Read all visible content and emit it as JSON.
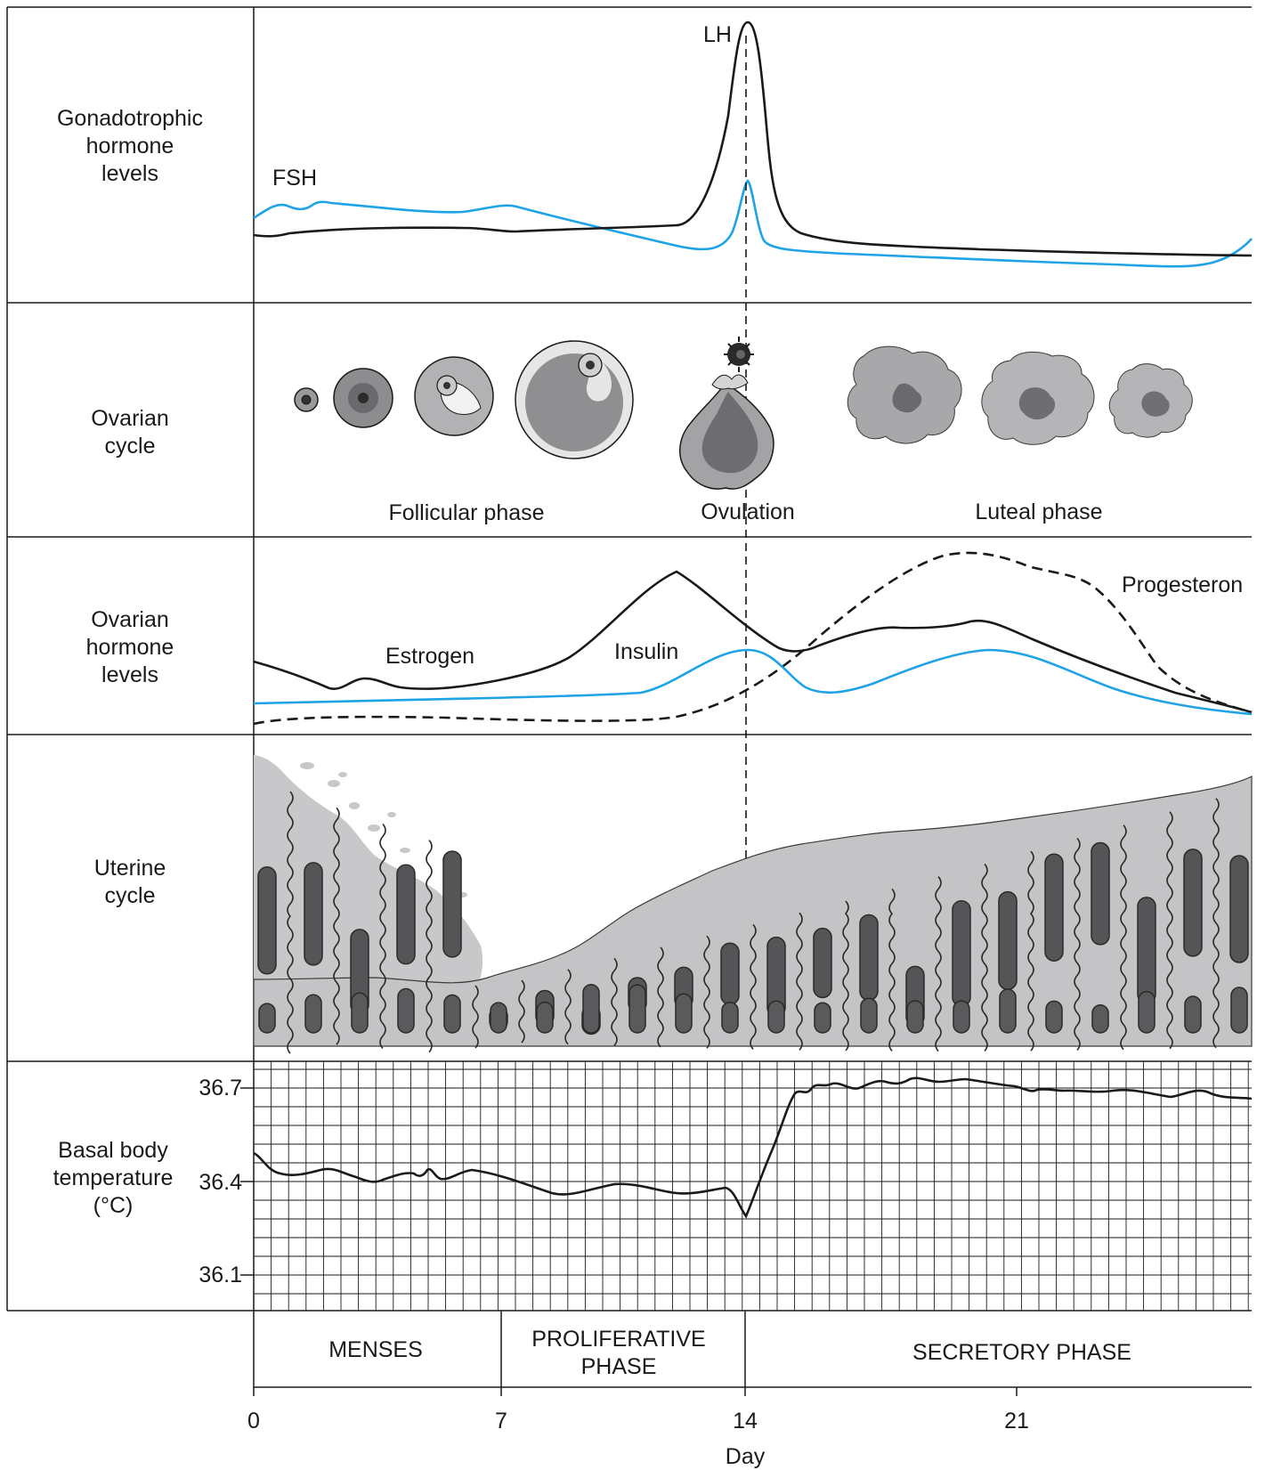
{
  "rows": {
    "gonadotrophic": "Gonadotrophic hormone levels",
    "ovarian_cycle": "Ovarian cycle",
    "ovarian_hormones": "Ovarian hormone levels",
    "uterine": "Uterine cycle",
    "bbt": "Basal body temperature (°C)"
  },
  "curves": {
    "lh": "LH",
    "fsh": "FSH",
    "estrogen": "Estrogen",
    "insulin": "Insulin",
    "progesterone": "Progesteron"
  },
  "ovarian_phases": {
    "follicular": "Follicular phase",
    "ovulation": "Ovulation",
    "luteal": "Luteal phase"
  },
  "bbt_ticks": [
    "36.7",
    "36.4",
    "36.1"
  ],
  "uterine_phases": {
    "menses": "MENSES",
    "proliferative_1": "PROLIFERATIVE",
    "proliferative_2": "PHASE",
    "secretory": "SECRETORY PHASE"
  },
  "day_ticks": [
    "0",
    "7",
    "14",
    "21"
  ],
  "x_axis_label": "Day",
  "colors": {
    "blue": "#1ea3e6",
    "black": "#1a1a1a",
    "tissue": "#c4c4c6",
    "gland": "#555558"
  }
}
